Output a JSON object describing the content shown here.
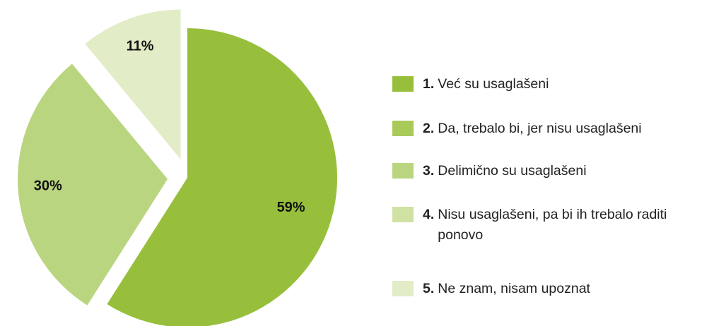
{
  "chart_data": {
    "type": "pie",
    "categories": [
      "Već su usaglašeni",
      "Da, trebalo bi, jer nisu usaglašeni",
      "Delimično su usaglašeni",
      "Nisu usaglašeni, pa bi ih trebalo raditi ponovo",
      "Ne znam, nisam upoznat"
    ],
    "legend_numbers": [
      "1.",
      "2.",
      "3.",
      "4.",
      "5."
    ],
    "values": [
      59,
      0,
      30,
      0,
      11
    ],
    "value_labels": [
      "59%",
      null,
      "30%",
      null,
      "11%"
    ],
    "colors": [
      "#97bf3c",
      "#a9ca58",
      "#bad580",
      "#cfe1a3",
      "#e2ecc6"
    ]
  }
}
